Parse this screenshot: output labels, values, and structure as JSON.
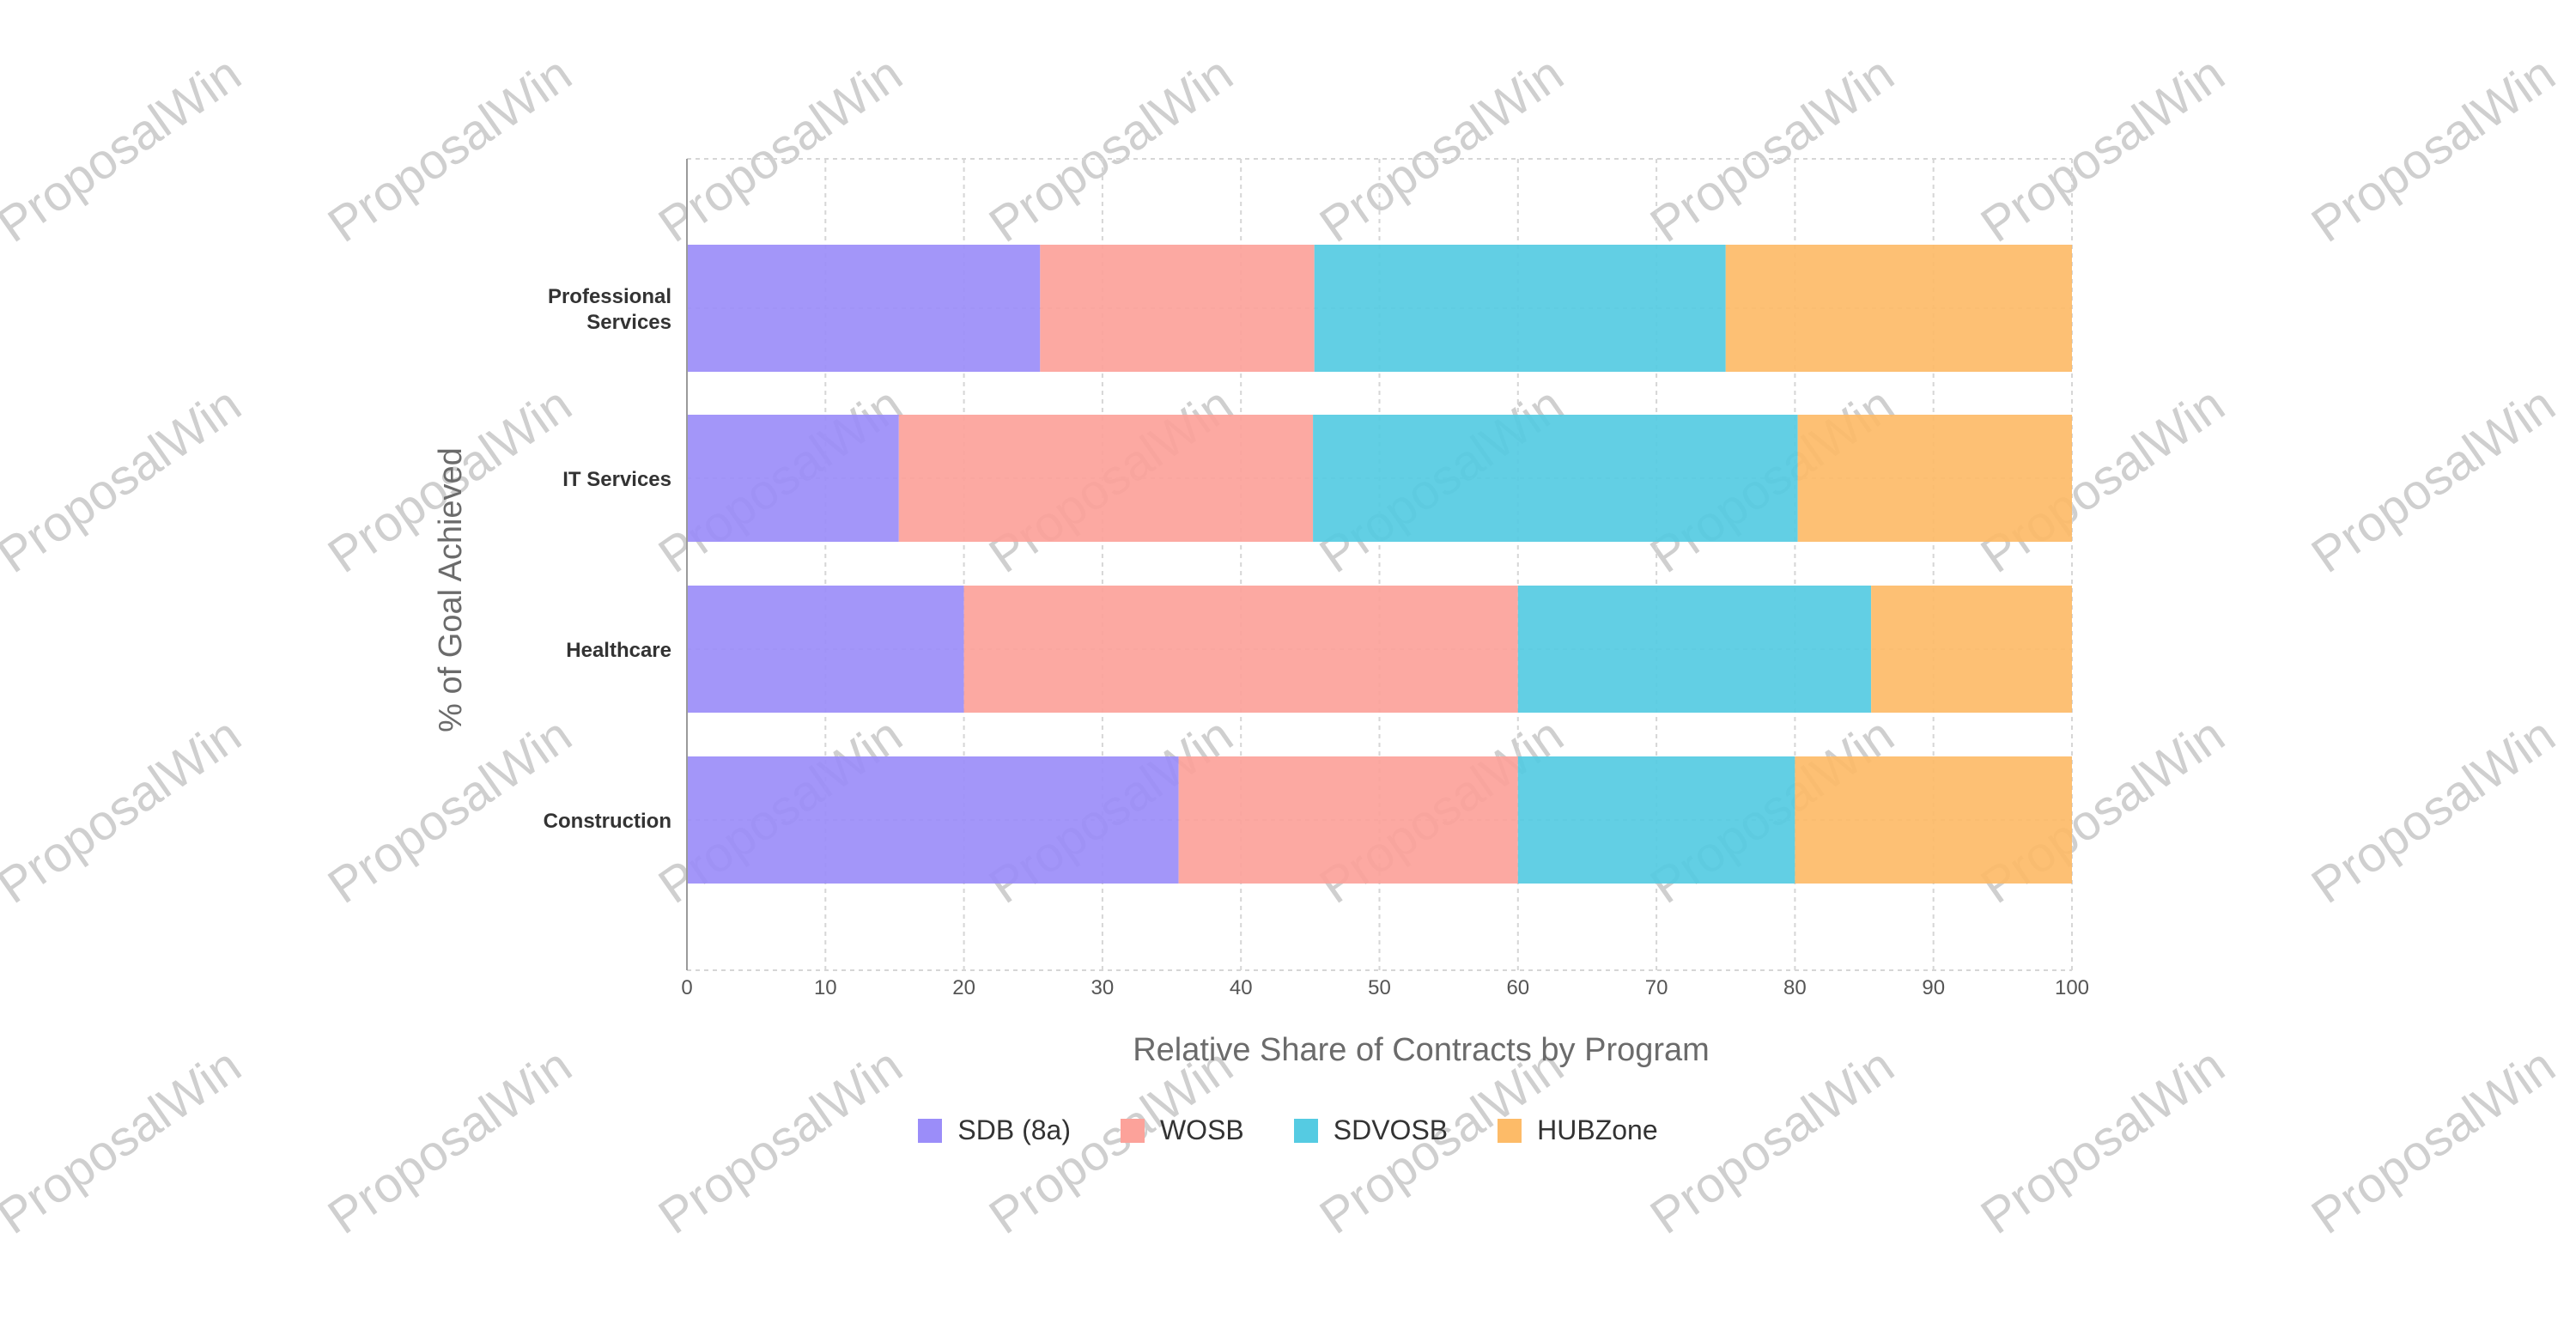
{
  "watermark": {
    "text": "ProposalWin",
    "color": "#cfcfcf"
  },
  "chart_data": {
    "type": "bar",
    "orientation": "horizontal",
    "stacked": true,
    "categories": [
      "Professional Services",
      "IT Services",
      "Healthcare",
      "Construction"
    ],
    "category_lines": [
      [
        "Professional",
        "Services"
      ],
      [
        "IT Services"
      ],
      [
        "Healthcare"
      ],
      [
        "Construction"
      ]
    ],
    "series": [
      {
        "name": "SDB (8a)",
        "color": "#9b8df9",
        "values": [
          25.5,
          15.3,
          20,
          35.5
        ]
      },
      {
        "name": "WOSB",
        "color": "#fca29a",
        "values": [
          19.8,
          29.9,
          40,
          24.5
        ]
      },
      {
        "name": "SDVOSB",
        "color": "#55cbe2",
        "values": [
          29.7,
          35,
          25.5,
          20
        ]
      },
      {
        "name": "HUBZone",
        "color": "#fdbb68",
        "values": [
          25,
          19.8,
          14.5,
          20
        ]
      }
    ],
    "xlabel": "Relative Share of Contracts by Program",
    "ylabel": "% of Goal Achieved",
    "xlim": [
      0,
      100
    ],
    "xticks": [
      0,
      10,
      20,
      30,
      40,
      50,
      60,
      70,
      80,
      90,
      100
    ],
    "grid": true,
    "legend_position": "bottom"
  }
}
